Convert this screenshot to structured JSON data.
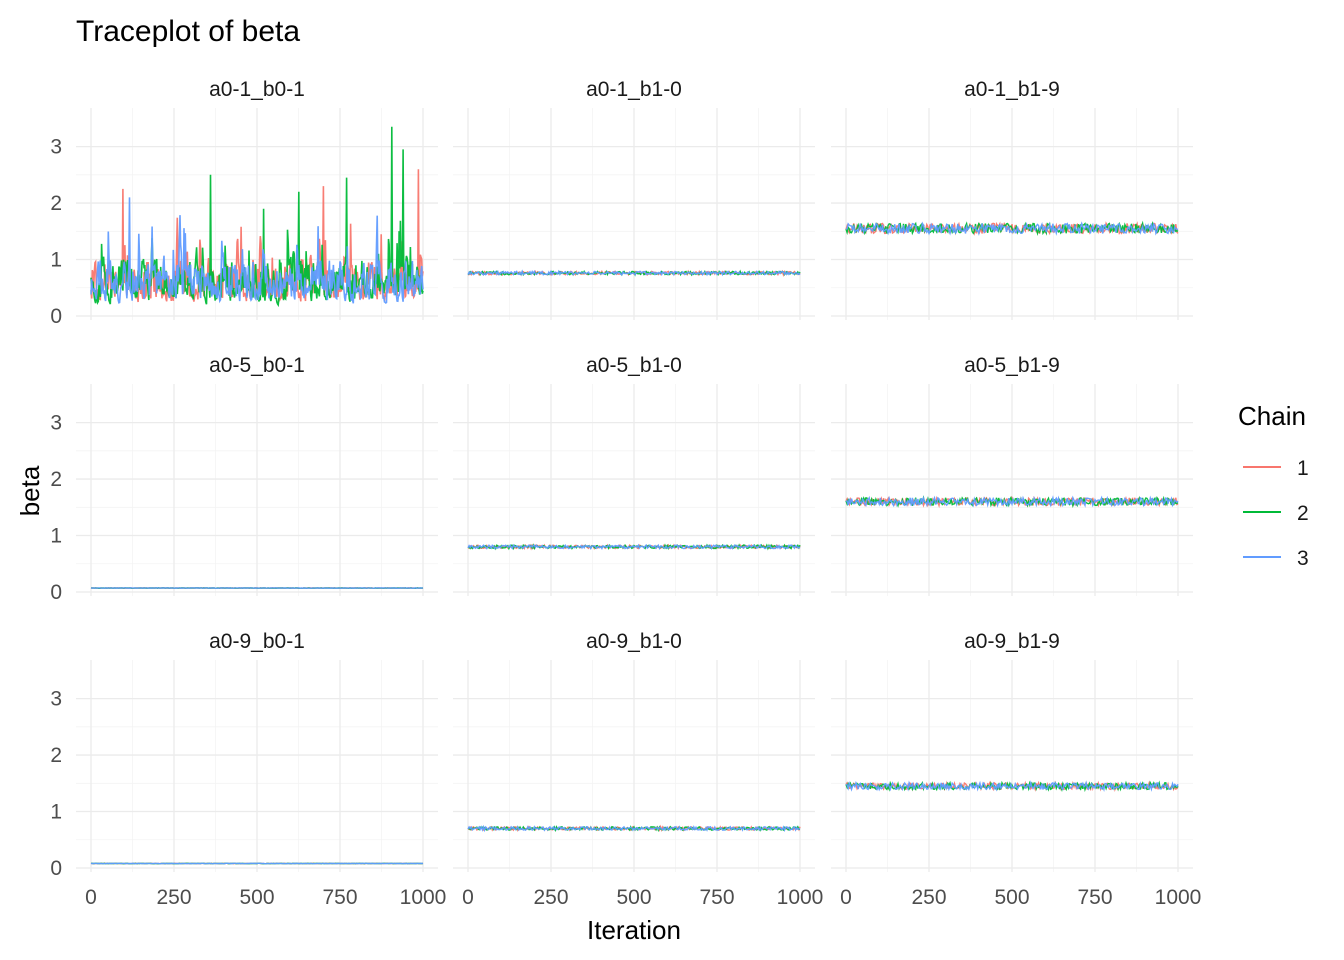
{
  "chart_data": {
    "type": "line",
    "title": "Traceplot of beta",
    "xlabel": "Iteration",
    "ylabel": "beta",
    "xlim": [
      0,
      1000
    ],
    "ylim": [
      0,
      3.4
    ],
    "x_ticks": [
      0,
      250,
      500,
      750,
      1000
    ],
    "x_tick_labels": [
      "0",
      "250",
      "500",
      "750",
      "1000"
    ],
    "y_ticks": [
      0,
      1,
      2,
      3
    ],
    "y_tick_labels": [
      "0",
      "1",
      "2",
      "3"
    ],
    "grid": true,
    "legend": {
      "title": "Chain",
      "position": "right",
      "entries": [
        {
          "name": "1",
          "color": "#F8766D"
        },
        {
          "name": "2",
          "color": "#00BA38"
        },
        {
          "name": "3",
          "color": "#619CFF"
        }
      ]
    },
    "facets": [
      {
        "label": "a0-1_b0-1",
        "row": 0,
        "col": 0,
        "center": 0.62,
        "spread": 0.42,
        "pattern": "wild",
        "peaks": [
          {
            "x": 95,
            "y": 2.25,
            "chain": 1
          },
          {
            "x": 115,
            "y": 2.1,
            "chain": 3
          },
          {
            "x": 360,
            "y": 2.5,
            "chain": 2
          },
          {
            "x": 520,
            "y": 1.9,
            "chain": 2
          },
          {
            "x": 625,
            "y": 2.2,
            "chain": 2
          },
          {
            "x": 700,
            "y": 2.3,
            "chain": 1
          },
          {
            "x": 770,
            "y": 2.45,
            "chain": 2
          },
          {
            "x": 905,
            "y": 3.35,
            "chain": 2
          },
          {
            "x": 940,
            "y": 2.95,
            "chain": 2
          },
          {
            "x": 985,
            "y": 2.6,
            "chain": 1
          }
        ]
      },
      {
        "label": "a0-1_b1-0",
        "row": 0,
        "col": 1,
        "center": 0.76,
        "spread": 0.03,
        "pattern": "stable"
      },
      {
        "label": "a0-1_b1-9",
        "row": 0,
        "col": 2,
        "center": 1.55,
        "spread": 0.09,
        "pattern": "stable"
      },
      {
        "label": "a0-5_b0-1",
        "row": 1,
        "col": 0,
        "center": 0.07,
        "spread": 0.004,
        "pattern": "stable"
      },
      {
        "label": "a0-5_b1-0",
        "row": 1,
        "col": 1,
        "center": 0.8,
        "spread": 0.03,
        "pattern": "stable"
      },
      {
        "label": "a0-5_b1-9",
        "row": 1,
        "col": 2,
        "center": 1.6,
        "spread": 0.07,
        "pattern": "stable"
      },
      {
        "label": "a0-9_b0-1",
        "row": 2,
        "col": 0,
        "center": 0.08,
        "spread": 0.004,
        "pattern": "stable"
      },
      {
        "label": "a0-9_b1-0",
        "row": 2,
        "col": 1,
        "center": 0.7,
        "spread": 0.03,
        "pattern": "stable"
      },
      {
        "label": "a0-9_b1-9",
        "row": 2,
        "col": 2,
        "center": 1.45,
        "spread": 0.06,
        "pattern": "stable"
      }
    ]
  }
}
